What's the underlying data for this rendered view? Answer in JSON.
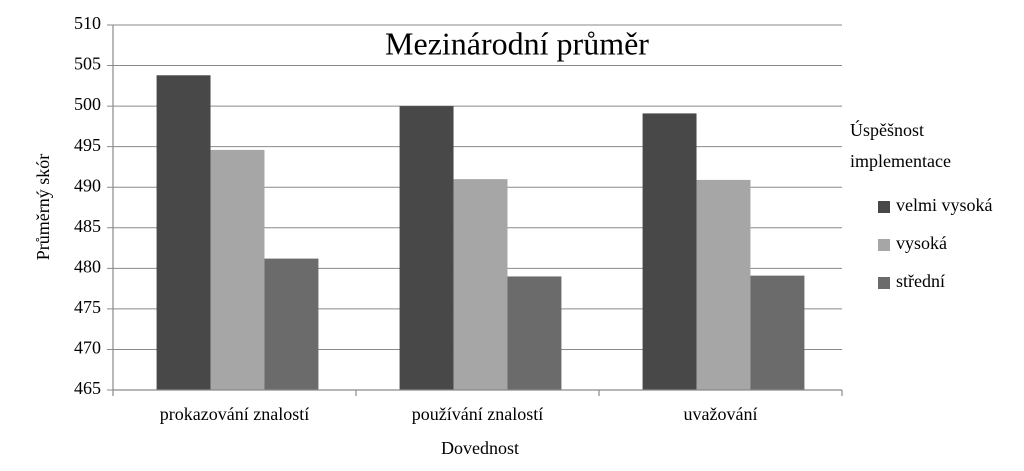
{
  "chart_data": {
    "type": "bar",
    "title": "Mezinárodní průměr",
    "x_label": "Dovednost",
    "y_label": "Průměrný skór",
    "legend_title": [
      "Úspěšnost",
      "implementace"
    ],
    "categories": [
      "prokazování znalostí",
      "používání znalostí",
      "uvažování"
    ],
    "series": [
      {
        "name": "velmi vysoká",
        "color": "#484848",
        "values": [
          503.8,
          500.0,
          499.1
        ]
      },
      {
        "name": "vysoká",
        "color": "#a6a6a6",
        "values": [
          494.6,
          491.0,
          490.9
        ]
      },
      {
        "name": "střední",
        "color": "#6b6b6b",
        "values": [
          481.2,
          479.0,
          479.1
        ]
      }
    ],
    "ylim": [
      465,
      510
    ],
    "yticks": [
      465,
      470,
      475,
      480,
      485,
      490,
      495,
      500,
      505,
      510
    ],
    "grid": true,
    "legend": "right"
  }
}
